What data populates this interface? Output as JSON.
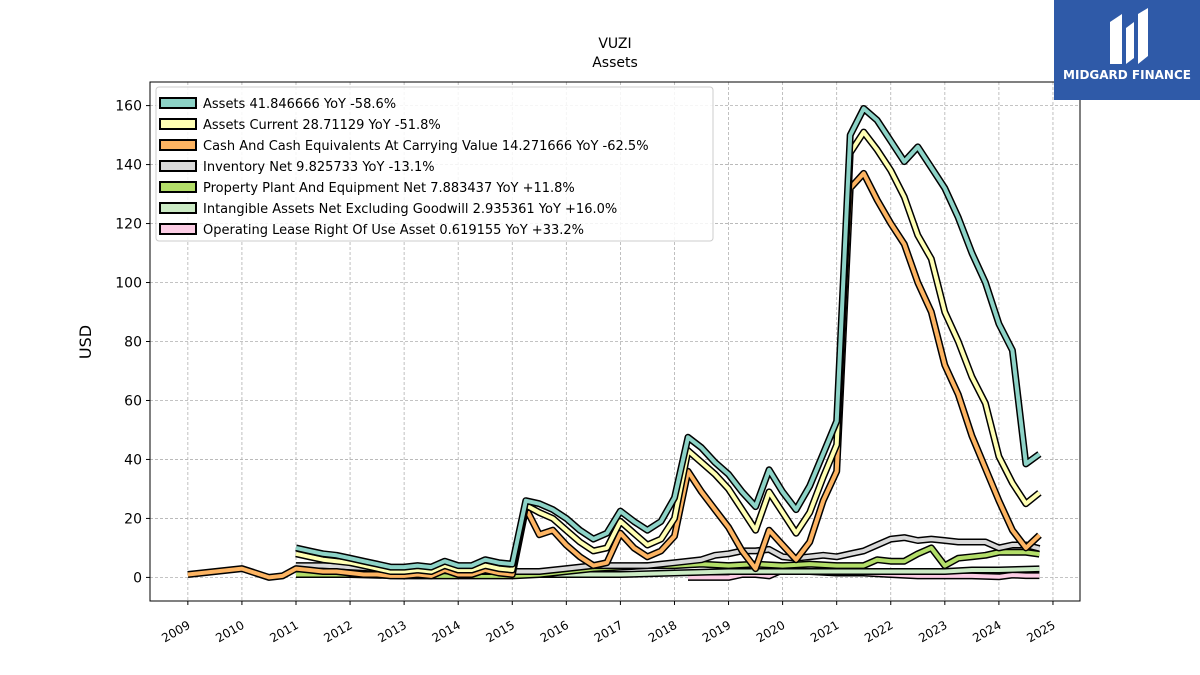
{
  "brand": {
    "name": "MIDGARD FINANCE",
    "color": "#2f5aa8"
  },
  "chart_data": {
    "type": "line",
    "title": "VUZI",
    "subtitle": "Assets",
    "xlabel": "",
    "ylabel": "USD",
    "xlim": [
      2008.3,
      2025.5
    ],
    "ylim": [
      -8,
      168
    ],
    "x_ticks": [
      "2009",
      "2010",
      "2011",
      "2012",
      "2013",
      "2014",
      "2015",
      "2016",
      "2017",
      "2018",
      "2019",
      "2020",
      "2021",
      "2022",
      "2023",
      "2024",
      "2025"
    ],
    "y_ticks": [
      0,
      20,
      40,
      60,
      80,
      100,
      120,
      140,
      160
    ],
    "grid": true,
    "legend_position": "top-left",
    "series": [
      {
        "name": "Assets  41.846666 YoY -58.6%",
        "color": "#8dd3c7",
        "points": [
          [
            2011.0,
            10
          ],
          [
            2011.25,
            9
          ],
          [
            2011.5,
            8
          ],
          [
            2011.75,
            7.5
          ],
          [
            2012.0,
            6.5
          ],
          [
            2012.25,
            5.5
          ],
          [
            2012.5,
            4.5
          ],
          [
            2012.75,
            3.5
          ],
          [
            2013.0,
            3.5
          ],
          [
            2013.25,
            4
          ],
          [
            2013.5,
            3.5
          ],
          [
            2013.75,
            5.5
          ],
          [
            2014.0,
            4
          ],
          [
            2014.25,
            4
          ],
          [
            2014.5,
            6
          ],
          [
            2014.75,
            5
          ],
          [
            2015.0,
            4.5
          ],
          [
            2015.25,
            26
          ],
          [
            2015.5,
            25
          ],
          [
            2015.75,
            23
          ],
          [
            2016.0,
            20
          ],
          [
            2016.25,
            16
          ],
          [
            2016.5,
            13
          ],
          [
            2016.75,
            15
          ],
          [
            2017.0,
            22.5
          ],
          [
            2017.25,
            19
          ],
          [
            2017.5,
            16
          ],
          [
            2017.75,
            19
          ],
          [
            2018.0,
            27
          ],
          [
            2018.25,
            47.5
          ],
          [
            2018.5,
            44
          ],
          [
            2018.75,
            39
          ],
          [
            2019.0,
            35
          ],
          [
            2019.25,
            29
          ],
          [
            2019.5,
            24
          ],
          [
            2019.75,
            36.5
          ],
          [
            2020.0,
            29
          ],
          [
            2020.25,
            23
          ],
          [
            2020.5,
            31
          ],
          [
            2020.75,
            42
          ],
          [
            2021.0,
            53
          ],
          [
            2021.25,
            150
          ],
          [
            2021.5,
            159
          ],
          [
            2021.75,
            155
          ],
          [
            2022.0,
            148
          ],
          [
            2022.25,
            141
          ],
          [
            2022.5,
            146
          ],
          [
            2022.75,
            139
          ],
          [
            2023.0,
            132
          ],
          [
            2023.25,
            122
          ],
          [
            2023.5,
            110
          ],
          [
            2023.75,
            100
          ],
          [
            2024.0,
            86
          ],
          [
            2024.25,
            77
          ],
          [
            2024.5,
            38.5
          ],
          [
            2024.75,
            41.8
          ]
        ]
      },
      {
        "name": "Assets Current  28.71129 YoY -51.8%",
        "color": "#ffffb3",
        "points": [
          [
            2011.0,
            8
          ],
          [
            2011.25,
            7
          ],
          [
            2011.5,
            6
          ],
          [
            2011.75,
            5.5
          ],
          [
            2012.0,
            5
          ],
          [
            2012.25,
            4
          ],
          [
            2012.5,
            3
          ],
          [
            2012.75,
            2
          ],
          [
            2013.0,
            2
          ],
          [
            2013.25,
            2.5
          ],
          [
            2013.5,
            2
          ],
          [
            2013.75,
            4
          ],
          [
            2014.0,
            2.5
          ],
          [
            2014.25,
            2.5
          ],
          [
            2014.5,
            4
          ],
          [
            2014.75,
            3
          ],
          [
            2015.0,
            2.5
          ],
          [
            2015.25,
            24.5
          ],
          [
            2015.5,
            22
          ],
          [
            2015.75,
            20
          ],
          [
            2016.0,
            16
          ],
          [
            2016.25,
            12
          ],
          [
            2016.5,
            9
          ],
          [
            2016.75,
            10
          ],
          [
            2017.0,
            19
          ],
          [
            2017.25,
            15
          ],
          [
            2017.5,
            11
          ],
          [
            2017.75,
            13
          ],
          [
            2018.0,
            20
          ],
          [
            2018.25,
            43
          ],
          [
            2018.5,
            39
          ],
          [
            2018.75,
            35
          ],
          [
            2019.0,
            30
          ],
          [
            2019.25,
            23
          ],
          [
            2019.5,
            16
          ],
          [
            2019.75,
            29
          ],
          [
            2020.0,
            22
          ],
          [
            2020.25,
            15
          ],
          [
            2020.5,
            22
          ],
          [
            2020.75,
            34
          ],
          [
            2021.0,
            45
          ],
          [
            2021.25,
            144
          ],
          [
            2021.5,
            151
          ],
          [
            2021.75,
            145
          ],
          [
            2022.0,
            138
          ],
          [
            2022.25,
            129
          ],
          [
            2022.5,
            116
          ],
          [
            2022.75,
            108
          ],
          [
            2023.0,
            90
          ],
          [
            2023.25,
            80
          ],
          [
            2023.5,
            68
          ],
          [
            2023.75,
            59
          ],
          [
            2024.0,
            41
          ],
          [
            2024.25,
            32
          ],
          [
            2024.5,
            25
          ],
          [
            2024.75,
            28.7
          ]
        ]
      },
      {
        "name": "Cash And Cash Equivalents At Carrying Value  14.271666 YoY -62.5%",
        "color": "#fdb462",
        "points": [
          [
            2009.0,
            1
          ],
          [
            2010.0,
            3
          ],
          [
            2010.5,
            0
          ],
          [
            2010.75,
            0.5
          ],
          [
            2011.0,
            3
          ],
          [
            2011.25,
            2.5
          ],
          [
            2011.5,
            2
          ],
          [
            2011.75,
            2
          ],
          [
            2012.0,
            1.5
          ],
          [
            2012.25,
            1
          ],
          [
            2012.5,
            1
          ],
          [
            2012.75,
            0.5
          ],
          [
            2013.0,
            0.5
          ],
          [
            2013.25,
            1
          ],
          [
            2013.5,
            0.5
          ],
          [
            2013.75,
            2.5
          ],
          [
            2014.0,
            1
          ],
          [
            2014.25,
            1
          ],
          [
            2014.5,
            2.5
          ],
          [
            2014.75,
            1.5
          ],
          [
            2015.0,
            1
          ],
          [
            2015.25,
            23.5
          ],
          [
            2015.5,
            14.5
          ],
          [
            2015.75,
            16
          ],
          [
            2016.0,
            11
          ],
          [
            2016.25,
            7
          ],
          [
            2016.5,
            4
          ],
          [
            2016.75,
            5
          ],
          [
            2017.0,
            15
          ],
          [
            2017.25,
            10
          ],
          [
            2017.5,
            7
          ],
          [
            2017.75,
            9
          ],
          [
            2018.0,
            14
          ],
          [
            2018.25,
            36
          ],
          [
            2018.5,
            29
          ],
          [
            2018.75,
            23
          ],
          [
            2019.0,
            17
          ],
          [
            2019.25,
            9
          ],
          [
            2019.5,
            3
          ],
          [
            2019.75,
            16
          ],
          [
            2020.0,
            11
          ],
          [
            2020.25,
            6
          ],
          [
            2020.5,
            12
          ],
          [
            2020.75,
            26
          ],
          [
            2021.0,
            36
          ],
          [
            2021.25,
            132
          ],
          [
            2021.5,
            137
          ],
          [
            2021.75,
            128
          ],
          [
            2022.0,
            120
          ],
          [
            2022.25,
            113
          ],
          [
            2022.5,
            100
          ],
          [
            2022.75,
            90
          ],
          [
            2023.0,
            72
          ],
          [
            2023.25,
            62
          ],
          [
            2023.5,
            48
          ],
          [
            2023.75,
            37
          ],
          [
            2024.0,
            26
          ],
          [
            2024.25,
            16
          ],
          [
            2024.5,
            10
          ],
          [
            2024.75,
            14.3
          ]
        ]
      },
      {
        "name": "Inventory Net  9.825733 YoY -13.1%",
        "color": "#d9d9d9",
        "points": [
          [
            2011.0,
            4
          ],
          [
            2011.5,
            4
          ],
          [
            2012.0,
            3.5
          ],
          [
            2012.5,
            3
          ],
          [
            2013.0,
            2.5
          ],
          [
            2013.5,
            2.5
          ],
          [
            2014.0,
            2
          ],
          [
            2014.5,
            2
          ],
          [
            2015.0,
            2
          ],
          [
            2015.5,
            2
          ],
          [
            2016.0,
            3
          ],
          [
            2016.5,
            4
          ],
          [
            2017.0,
            4
          ],
          [
            2017.5,
            4
          ],
          [
            2018.0,
            5
          ],
          [
            2018.5,
            6
          ],
          [
            2018.75,
            7.5
          ],
          [
            2019.0,
            8
          ],
          [
            2019.25,
            9
          ],
          [
            2019.5,
            9
          ],
          [
            2019.75,
            9.5
          ],
          [
            2020.0,
            7
          ],
          [
            2020.25,
            6.5
          ],
          [
            2020.5,
            7
          ],
          [
            2020.75,
            7.5
          ],
          [
            2021.0,
            7
          ],
          [
            2021.25,
            8
          ],
          [
            2021.5,
            9
          ],
          [
            2021.75,
            11
          ],
          [
            2022.0,
            13
          ],
          [
            2022.25,
            13.5
          ],
          [
            2022.5,
            12.5
          ],
          [
            2022.75,
            13
          ],
          [
            2023.0,
            12.5
          ],
          [
            2023.25,
            12
          ],
          [
            2023.5,
            12
          ],
          [
            2023.75,
            12
          ],
          [
            2024.0,
            10
          ],
          [
            2024.25,
            11
          ],
          [
            2024.5,
            11
          ],
          [
            2024.75,
            9.8
          ]
        ]
      },
      {
        "name": "Property Plant And Equipment Net  7.883437 YoY +11.8%",
        "color": "#b3de69",
        "points": [
          [
            2011.0,
            1
          ],
          [
            2012.0,
            1
          ],
          [
            2013.0,
            0.5
          ],
          [
            2014.0,
            0.5
          ],
          [
            2015.0,
            0.5
          ],
          [
            2015.5,
            1
          ],
          [
            2016.0,
            2
          ],
          [
            2016.5,
            3
          ],
          [
            2017.0,
            3.5
          ],
          [
            2017.5,
            4
          ],
          [
            2018.0,
            4
          ],
          [
            2018.5,
            4.5
          ],
          [
            2019.0,
            4
          ],
          [
            2019.5,
            4.5
          ],
          [
            2020.0,
            4
          ],
          [
            2020.5,
            4.5
          ],
          [
            2021.0,
            4
          ],
          [
            2021.25,
            4
          ],
          [
            2021.5,
            4
          ],
          [
            2021.75,
            6
          ],
          [
            2022.0,
            5.5
          ],
          [
            2022.25,
            5.5
          ],
          [
            2022.5,
            8
          ],
          [
            2022.75,
            10
          ],
          [
            2023.0,
            4
          ],
          [
            2023.25,
            6.5
          ],
          [
            2023.5,
            7
          ],
          [
            2023.75,
            7.5
          ],
          [
            2024.0,
            8.5
          ],
          [
            2024.25,
            8.5
          ],
          [
            2024.5,
            8.5
          ],
          [
            2024.75,
            7.9
          ]
        ]
      },
      {
        "name": "Intangible Assets Net Excluding Goodwill  2.935361 YoY +16.0%",
        "color": "#ccebc5",
        "points": [
          [
            2011.0,
            1
          ],
          [
            2012.0,
            1
          ],
          [
            2013.0,
            1
          ],
          [
            2014.0,
            1
          ],
          [
            2015.0,
            1
          ],
          [
            2016.0,
            1
          ],
          [
            2017.0,
            1
          ],
          [
            2018.0,
            1.5
          ],
          [
            2019.0,
            2
          ],
          [
            2019.5,
            2
          ],
          [
            2020.0,
            2
          ],
          [
            2020.5,
            2
          ],
          [
            2021.0,
            2
          ],
          [
            2021.5,
            2
          ],
          [
            2022.0,
            2
          ],
          [
            2022.5,
            2
          ],
          [
            2023.0,
            2
          ],
          [
            2023.5,
            2.5
          ],
          [
            2024.0,
            2.5
          ],
          [
            2024.5,
            2.8
          ],
          [
            2024.75,
            2.9
          ]
        ]
      },
      {
        "name": "Operating Lease Right Of Use Asset  0.619155 YoY +33.2%",
        "color": "#fccde5",
        "points": [
          [
            2018.25,
            0
          ],
          [
            2019.0,
            0
          ],
          [
            2019.25,
            1
          ],
          [
            2019.5,
            1
          ],
          [
            2019.75,
            0.5
          ],
          [
            2020.0,
            2.5
          ],
          [
            2020.5,
            2
          ],
          [
            2021.0,
            1.5
          ],
          [
            2021.5,
            1.5
          ],
          [
            2022.0,
            1
          ],
          [
            2022.5,
            0.5
          ],
          [
            2023.0,
            0.5
          ],
          [
            2023.5,
            0.5
          ],
          [
            2024.0,
            0.2
          ],
          [
            2024.25,
            0.8
          ],
          [
            2024.5,
            0.6
          ],
          [
            2024.75,
            0.6
          ]
        ]
      }
    ]
  }
}
